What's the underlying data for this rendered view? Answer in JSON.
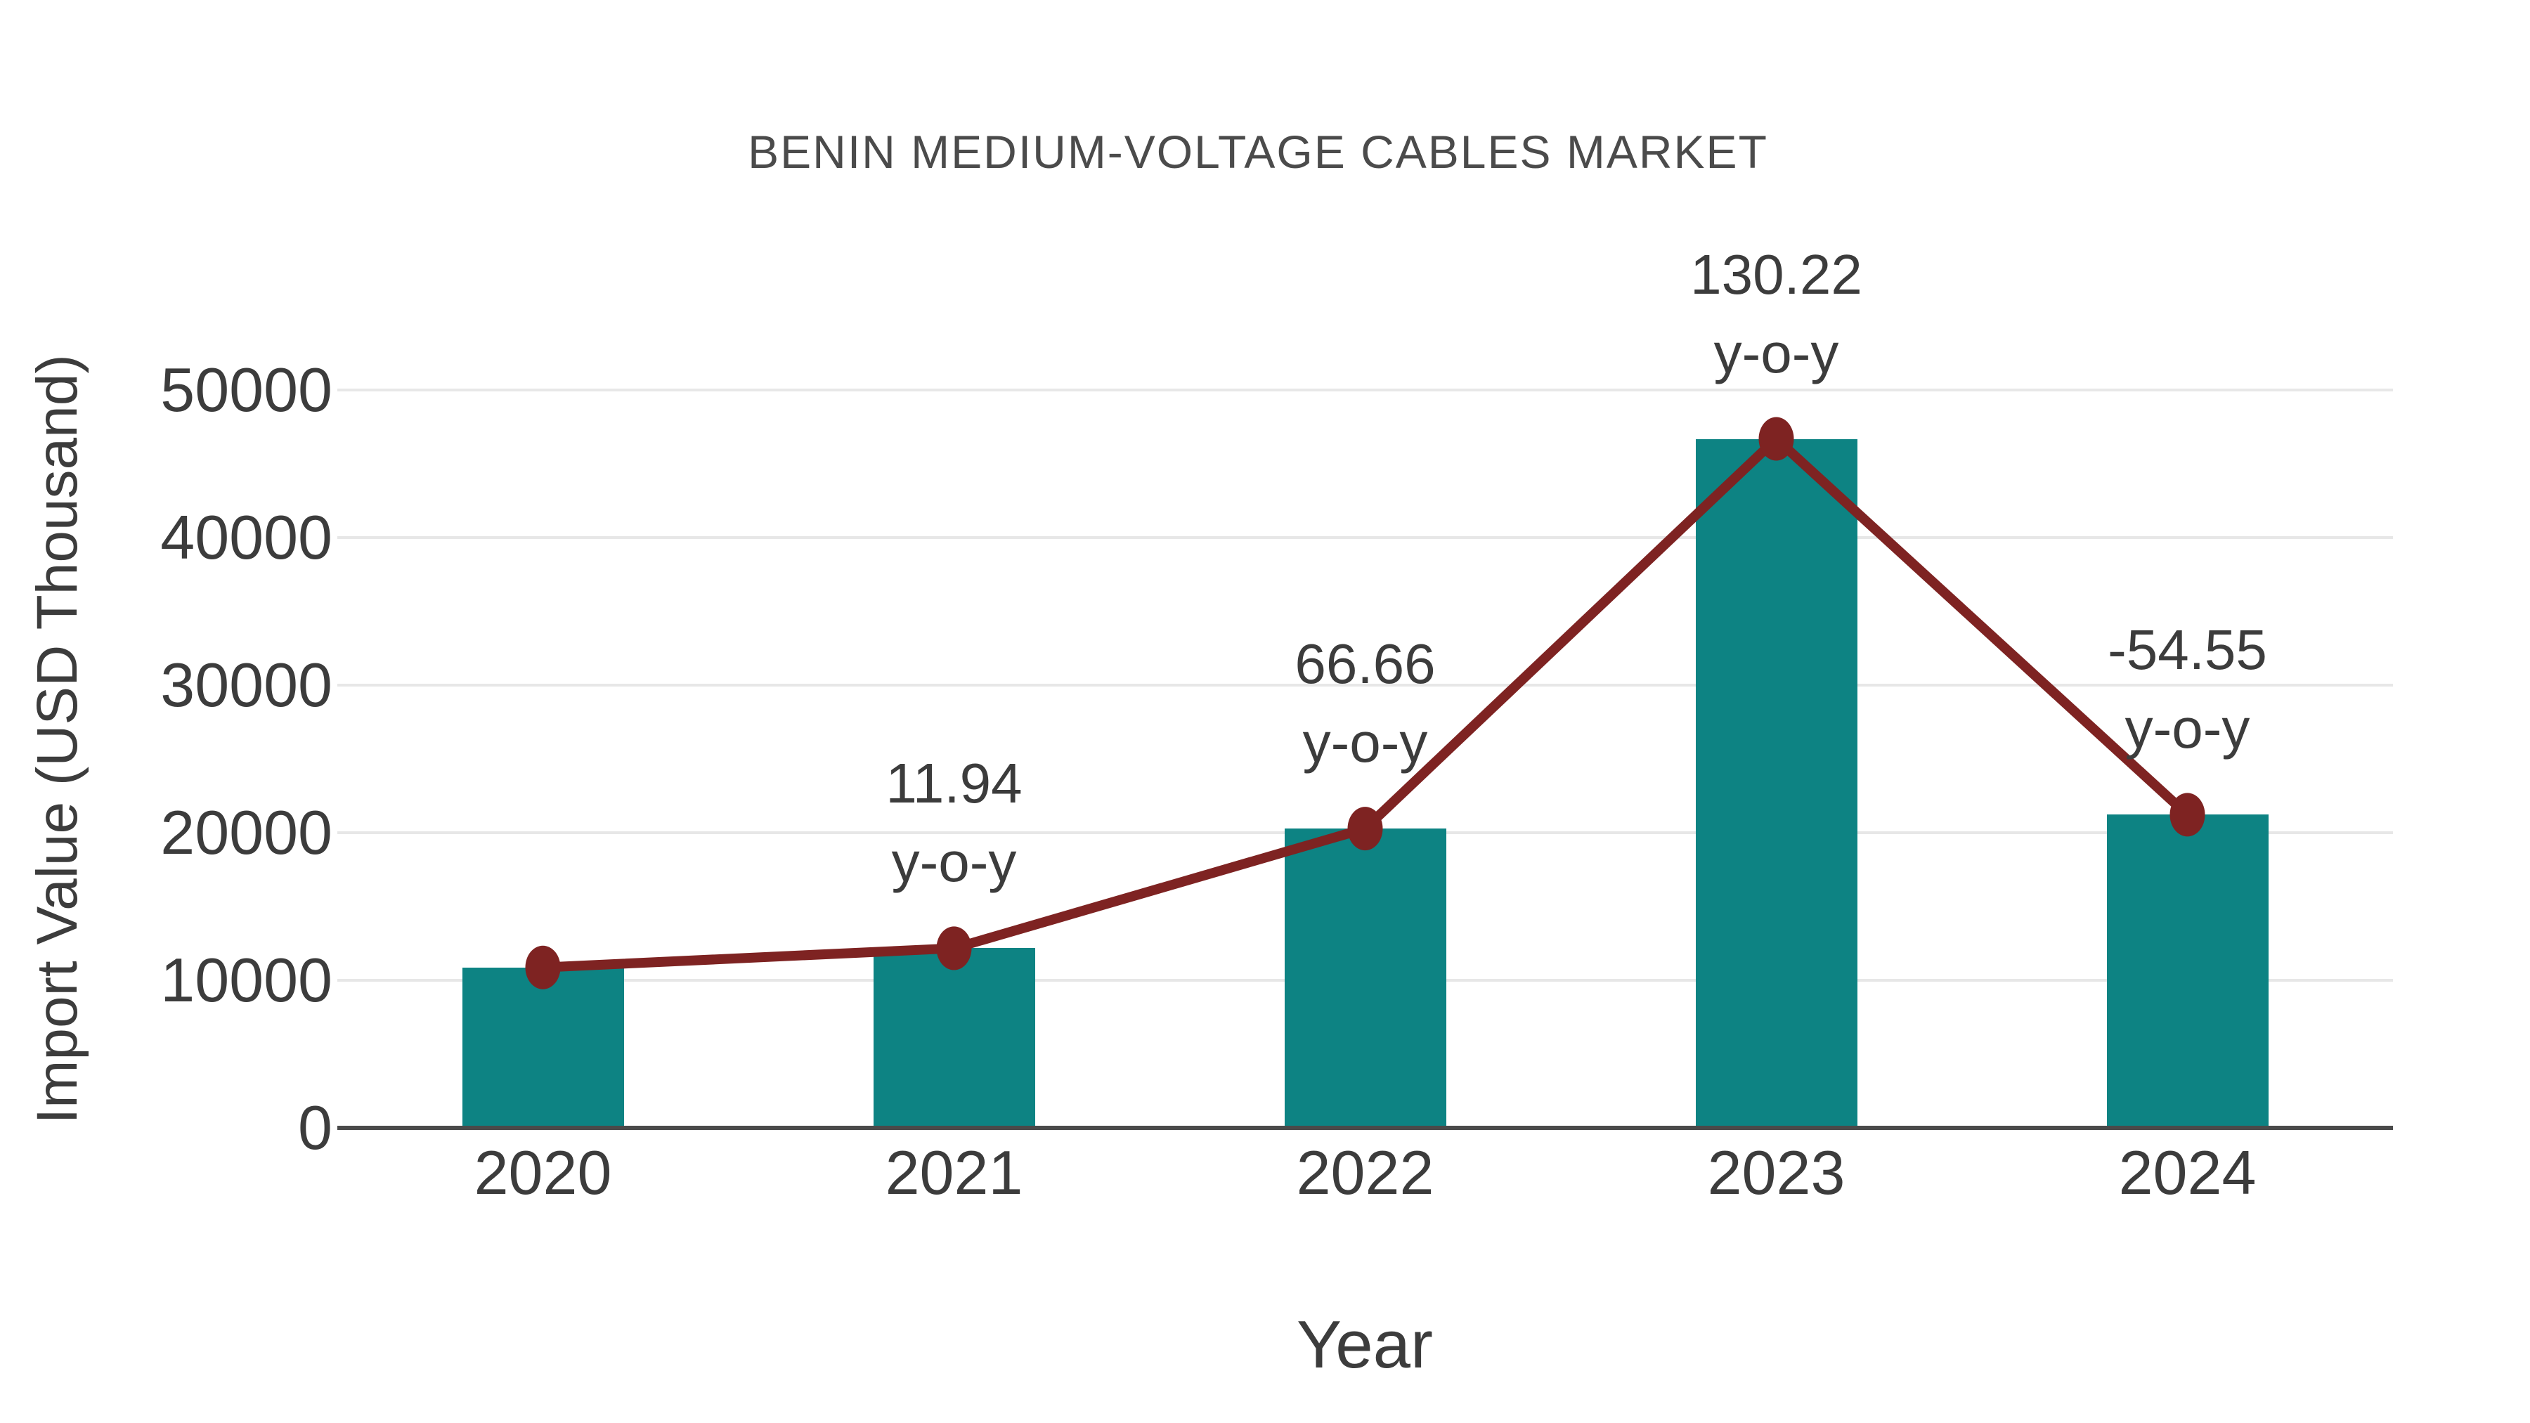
{
  "chart_data": {
    "type": "bar",
    "overlay": "line",
    "title": "BENIN MEDIUM-VOLTAGE CABLES MARKET",
    "xlabel": "Year",
    "ylabel": "Import Value (USD Thousand)",
    "categories": [
      "2020",
      "2021",
      "2022",
      "2023",
      "2024"
    ],
    "values": [
      10870,
      12170,
      20280,
      46690,
      21220
    ],
    "yticks": [
      0,
      10000,
      20000,
      30000,
      40000,
      50000
    ],
    "ylim": [
      0,
      50000
    ],
    "grid": "horizontal",
    "legend_position": "none",
    "annotations": [
      {
        "category": "2021",
        "value_label": "11.94",
        "suffix_label": "y-o-y"
      },
      {
        "category": "2022",
        "value_label": "66.66",
        "suffix_label": "y-o-y"
      },
      {
        "category": "2023",
        "value_label": "130.22",
        "suffix_label": "y-o-y"
      },
      {
        "category": "2024",
        "value_label": "-54.55",
        "suffix_label": "y-o-y"
      }
    ],
    "colors": {
      "bar": "#0d8383",
      "line": "#7e2322",
      "marker": "#7e2322",
      "text": "#3c3c3c",
      "title_text": "#4b4b4b",
      "gridline": "#e7e7e7",
      "axis_line": "#4a4a4a",
      "background": "#ffffff"
    }
  }
}
